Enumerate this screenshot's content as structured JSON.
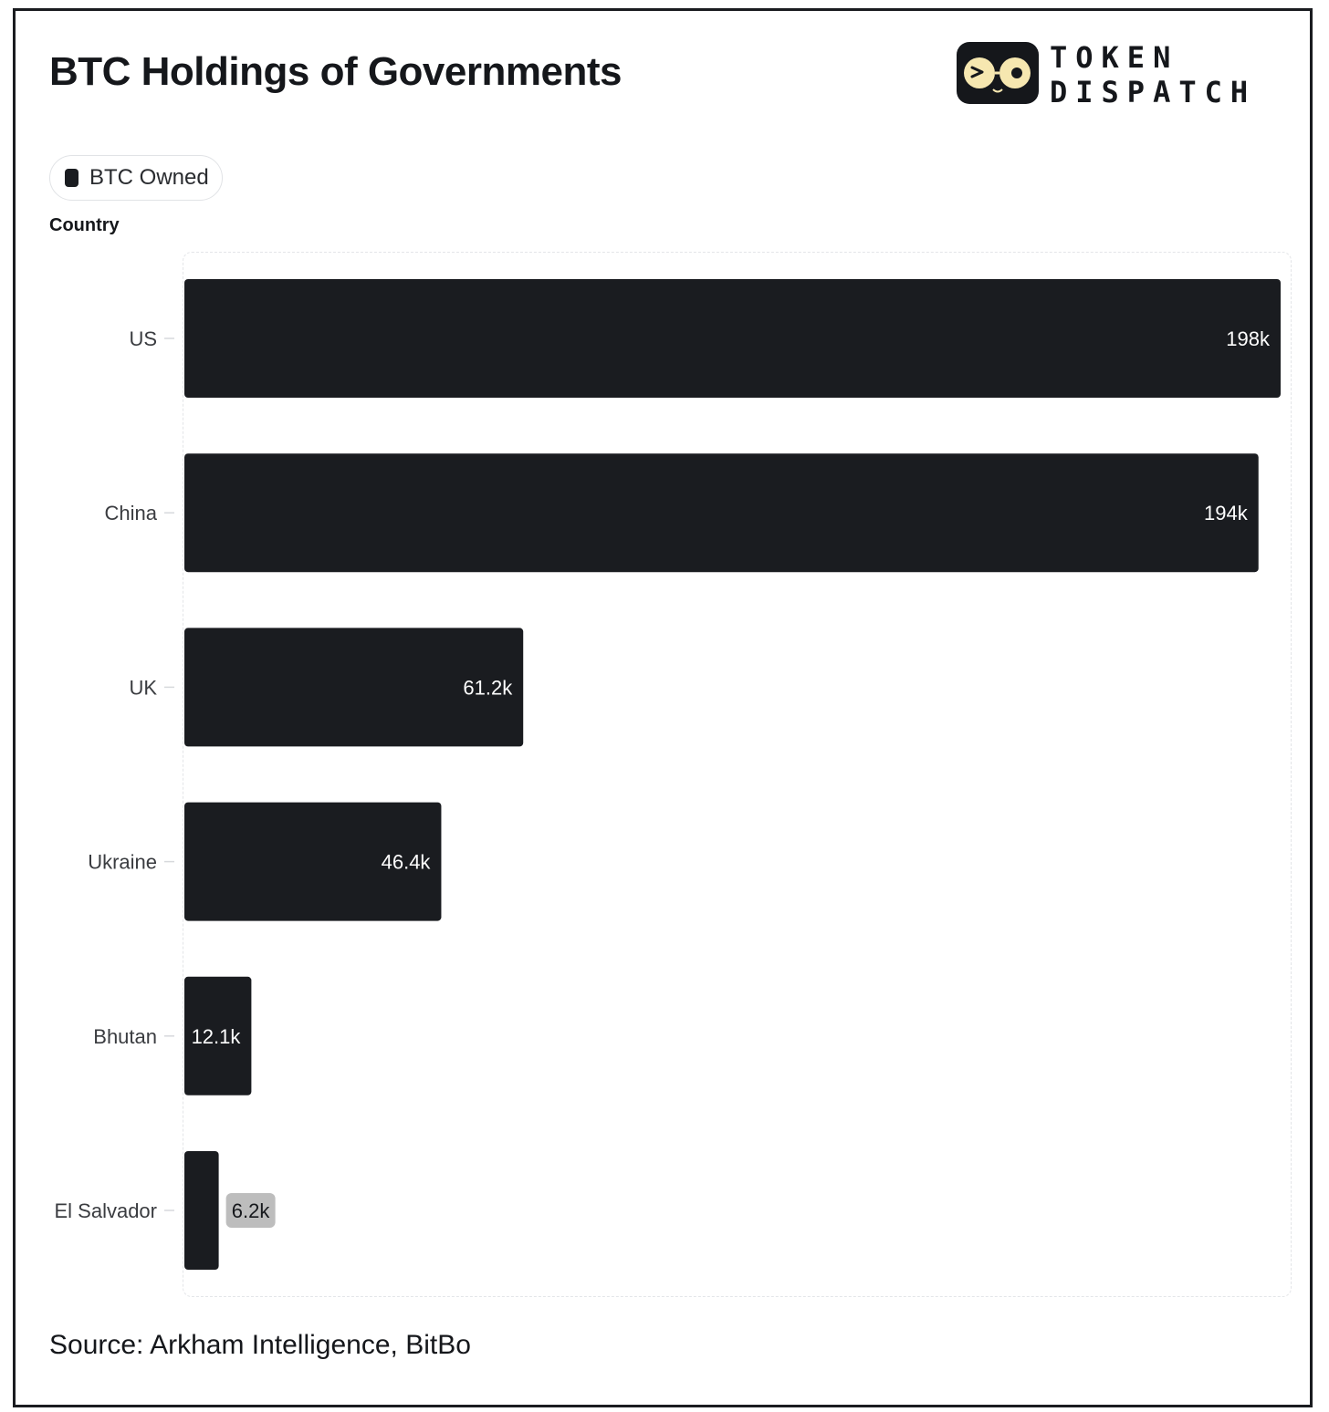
{
  "header": {
    "title": "BTC Holdings of Governments",
    "logo": {
      "line1": "TOKEN",
      "line2": "DISPATCH",
      "icon": "token-dispatch-face-icon"
    }
  },
  "legend": {
    "label": "BTC Owned",
    "swatch_color": "#1a1c20"
  },
  "y_axis_title": "Country",
  "footer": {
    "source": "Source: Arkham Intelligence, BitBo"
  },
  "colors": {
    "bar": "#1a1c20",
    "label_in": "#ffffff",
    "label_out_bg": "#bdbdbd",
    "label_out_text": "#15171b"
  },
  "chart_data": {
    "type": "bar",
    "orientation": "horizontal",
    "title": "BTC Holdings of Governments",
    "xlabel": "",
    "ylabel": "Country",
    "categories": [
      "US",
      "China",
      "UK",
      "Ukraine",
      "Bhutan",
      "El Salvador"
    ],
    "series": [
      {
        "name": "BTC Owned",
        "values": [
          198000,
          194000,
          61200,
          46400,
          12100,
          6200
        ]
      }
    ],
    "data_labels": [
      "198k",
      "194k",
      "61.2k",
      "46.4k",
      "12.1k",
      "6.2k"
    ],
    "xlim": [
      0,
      198000
    ],
    "grid": false,
    "legend": "top-left"
  }
}
